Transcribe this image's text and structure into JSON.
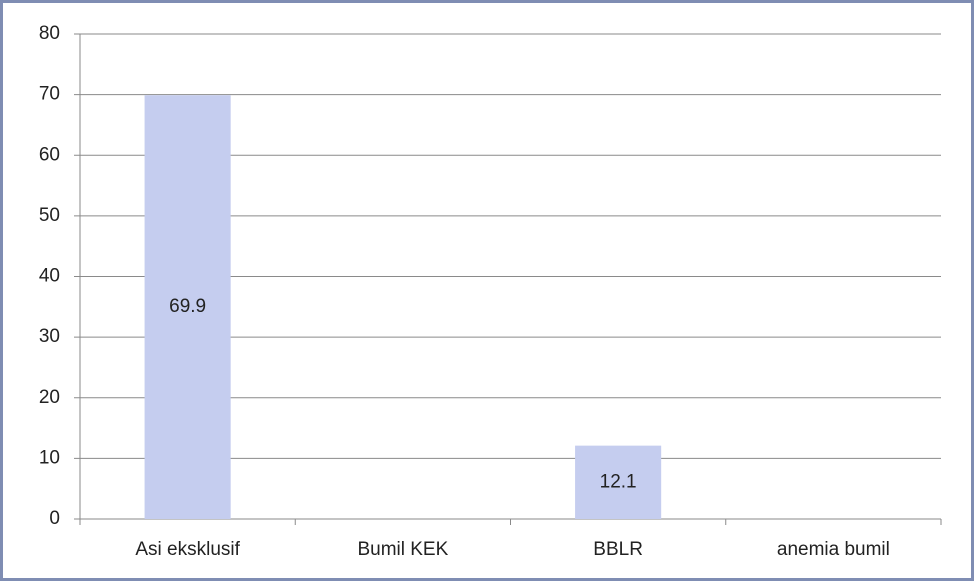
{
  "chart_data": {
    "type": "bar",
    "categories": [
      "Asi eksklusif",
      "Bumil KEK",
      "BBLR",
      "anemia bumil"
    ],
    "values": [
      69.9,
      null,
      12.1,
      null
    ],
    "color": "#c5cdef",
    "ylim": [
      0,
      80
    ],
    "yticks": [
      0,
      10,
      20,
      30,
      40,
      50,
      60,
      70,
      80
    ],
    "grid": true
  }
}
